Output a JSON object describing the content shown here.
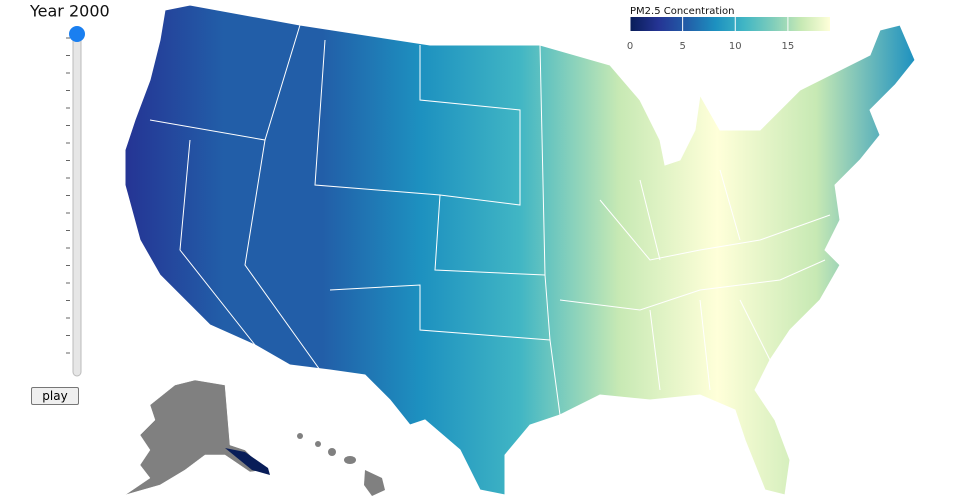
{
  "title": "Year 2000",
  "button": "play",
  "legend": {
    "title": "PM2.5 Concentration",
    "range": [
      0,
      19
    ],
    "ticks": [
      0,
      5,
      10,
      15
    ],
    "colors": [
      "#081d58",
      "#253494",
      "#225ea8",
      "#1d91c0",
      "#41b6c4",
      "#7fcdbb",
      "#c7e9b4",
      "#ffffd9"
    ]
  }
}
